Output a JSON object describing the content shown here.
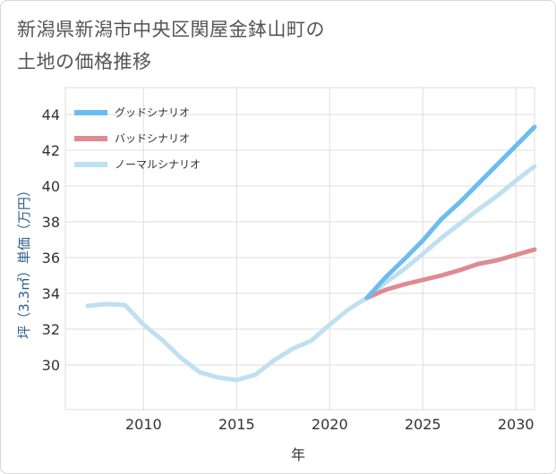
{
  "page": {
    "title_line1": "新潟県新潟市中央区関屋金鉢山町の",
    "title_line2": "土地の価格推移"
  },
  "colors": {
    "good": "#6bbcf0",
    "bad": "#df8a92",
    "normal": "#bfe0f0",
    "grid": "#dedede",
    "axis_text": "#333333",
    "ylabel_text": "#2d5f8a"
  },
  "chart_data": {
    "type": "line",
    "title": "新潟県新潟市中央区関屋金鉢山町の土地の価格推移",
    "xlabel": "年",
    "ylabel": "坪（3.3㎡）単価（万円）",
    "xlim": [
      2005.8,
      2031
    ],
    "ylim": [
      27.5,
      45.5
    ],
    "xticks": [
      2010,
      2015,
      2020,
      2025,
      2030
    ],
    "yticks": [
      30,
      32,
      34,
      36,
      38,
      40,
      42,
      44
    ],
    "grid": true,
    "legend_position": "top-left",
    "series": [
      {
        "name": "グッドシナリオ",
        "color_key": "good",
        "x": [
          2022,
          2023,
          2024,
          2025,
          2026,
          2027,
          2028,
          2029,
          2030,
          2031
        ],
        "y": [
          33.75,
          34.9,
          35.9,
          36.95,
          38.15,
          39.1,
          40.15,
          41.2,
          42.25,
          43.3
        ]
      },
      {
        "name": "バッドシナリオ",
        "color_key": "bad",
        "x": [
          2022,
          2023,
          2024,
          2025,
          2026,
          2027,
          2028,
          2029,
          2030,
          2031
        ],
        "y": [
          33.75,
          34.2,
          34.5,
          34.75,
          35.0,
          35.3,
          35.65,
          35.85,
          36.15,
          36.45
        ]
      },
      {
        "name": "ノーマルシナリオ",
        "color_key": "normal",
        "x": [
          2007,
          2008,
          2009,
          2010,
          2011,
          2012,
          2013,
          2014,
          2015,
          2016,
          2017,
          2018,
          2019,
          2020,
          2021,
          2022,
          2023,
          2024,
          2025,
          2026,
          2027,
          2028,
          2029,
          2030,
          2031
        ],
        "y": [
          33.3,
          33.4,
          33.35,
          32.25,
          31.4,
          30.4,
          29.6,
          29.3,
          29.15,
          29.45,
          30.25,
          30.9,
          31.35,
          32.25,
          33.1,
          33.75,
          34.6,
          35.35,
          36.2,
          37.1,
          37.9,
          38.7,
          39.45,
          40.3,
          41.1
        ]
      }
    ]
  }
}
